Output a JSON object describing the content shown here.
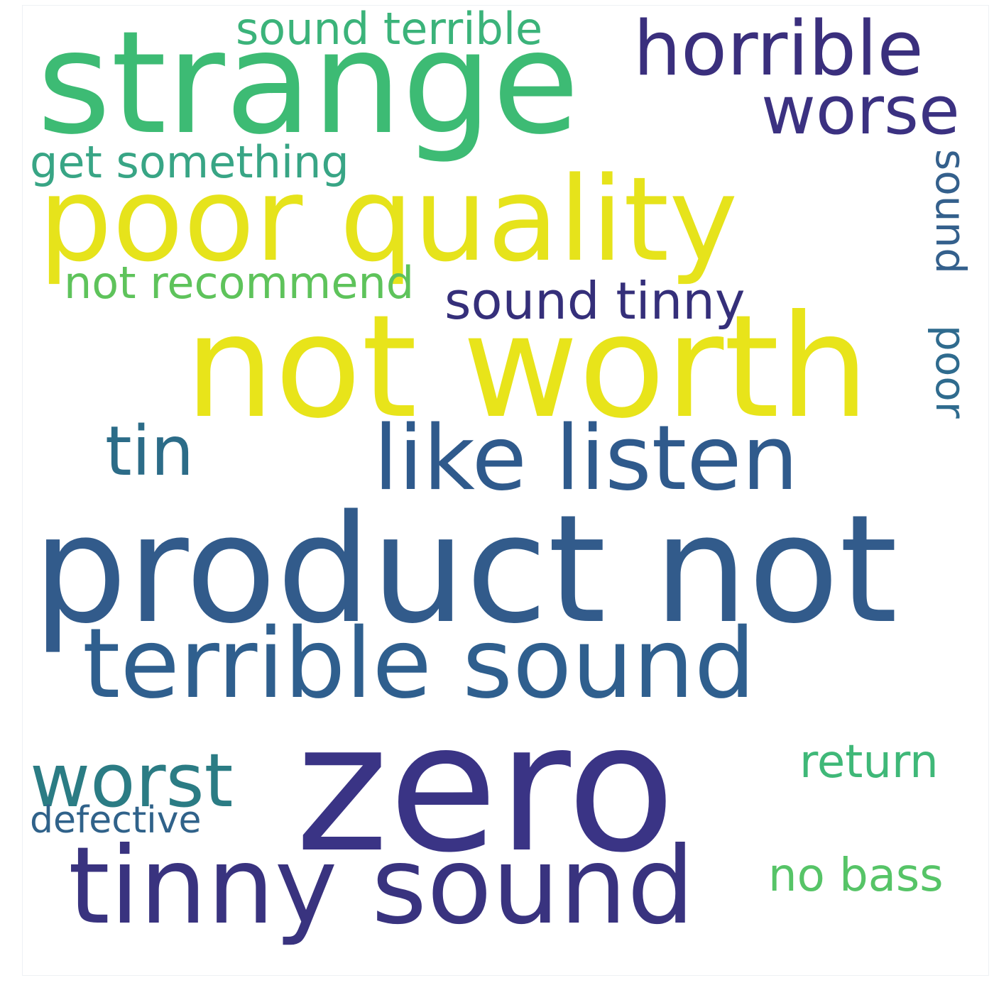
{
  "words": [
    {
      "key": "strange",
      "text": "strange",
      "color": "#3dbb74"
    },
    {
      "key": "sound_terrible",
      "text": "sound terrible",
      "color": "#3bb37a"
    },
    {
      "key": "horrible",
      "text": "horrible",
      "color": "#3a2f7d"
    },
    {
      "key": "worse",
      "text": "worse",
      "color": "#3b3181"
    },
    {
      "key": "get_something",
      "text": "get something",
      "color": "#38a585"
    },
    {
      "key": "poor_quality",
      "text": "poor quality",
      "color": "#e6e31b"
    },
    {
      "key": "sound_poor",
      "text": "sound",
      "color": "#34608c"
    },
    {
      "key": "poor_vertical",
      "text": "poor",
      "color": "#2f6b8e"
    },
    {
      "key": "not_recommend",
      "text": "not recommend",
      "color": "#5ec35b"
    },
    {
      "key": "sound_tinny",
      "text": "sound tinny",
      "color": "#352f7a"
    },
    {
      "key": "not_worth",
      "text": "not worth",
      "color": "#e8e41a"
    },
    {
      "key": "tin",
      "text": "tin",
      "color": "#2c6c88"
    },
    {
      "key": "like_listen",
      "text": "like listen",
      "color": "#2f5a8c"
    },
    {
      "key": "product_not",
      "text": "product not",
      "color": "#325b8b"
    },
    {
      "key": "terrible_sound",
      "text": "terrible sound",
      "color": "#2f5f8e"
    },
    {
      "key": "zero",
      "text": "zero",
      "color": "#3a3485"
    },
    {
      "key": "worst",
      "text": "worst",
      "color": "#2b7c84"
    },
    {
      "key": "return",
      "text": "return",
      "color": "#3fb878"
    },
    {
      "key": "defective",
      "text": "defective",
      "color": "#30628a"
    },
    {
      "key": "tinny_sound",
      "text": "tinny sound",
      "color": "#39337f"
    },
    {
      "key": "no_bass",
      "text": "no bass",
      "color": "#56c467"
    }
  ]
}
